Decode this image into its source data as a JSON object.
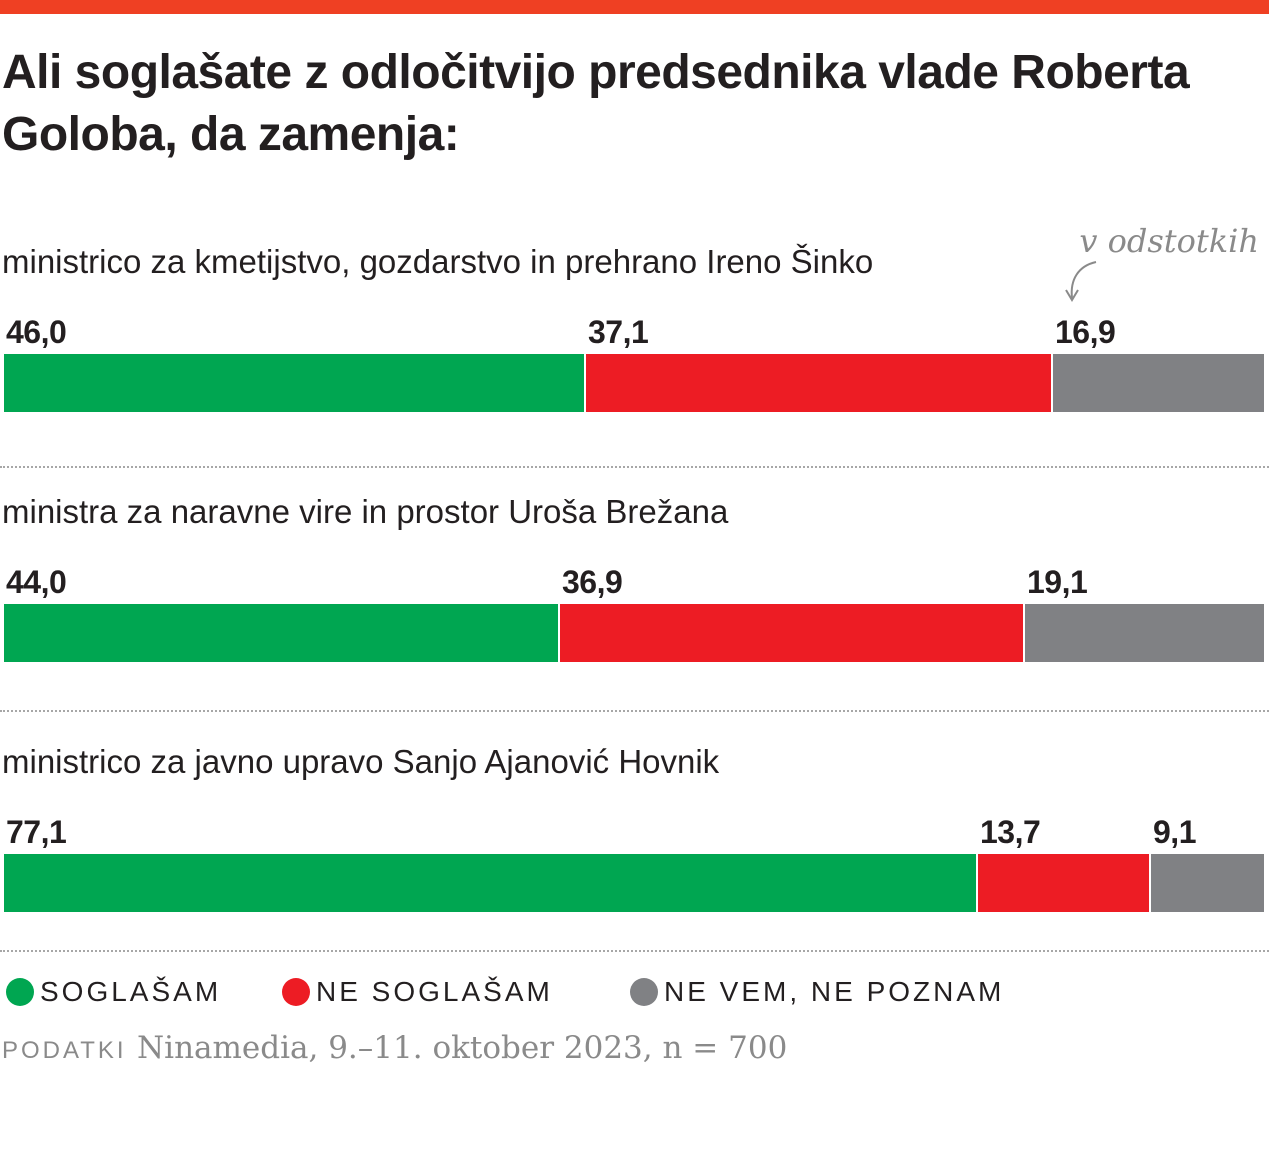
{
  "colors": {
    "accent": "#ef4023",
    "agree": "#00a651",
    "disagree": "#ed1c24",
    "unknown": "#808184",
    "text": "#231f20",
    "muted": "#8a8a8a"
  },
  "title": "Ali soglašate z odločitvijo predsednika vlade Roberta Goloba, da zamenja:",
  "unit_note": "v odstotkih",
  "chart_data": {
    "type": "bar",
    "orientation": "horizontal",
    "stacked": true,
    "title": "Ali soglašate z odločitvijo predsednika vlade Roberta Goloba, da zamenja:",
    "unit": "v odstotkih",
    "categories": [
      "ministrico za kmetijstvo, gozdarstvo in prehrano Ireno Šinko",
      "ministra za naravne vire in prostor Uroša Brežana",
      "ministrico za javno upravo Sanjo Ajanović Hovnik"
    ],
    "series": [
      {
        "name": "SOGLAŠAM",
        "color": "#00a651",
        "values": [
          46.0,
          44.0,
          77.1
        ],
        "labels": [
          "46,0",
          "44,0",
          "77,1"
        ]
      },
      {
        "name": "NE SOGLAŠAM",
        "color": "#ed1c24",
        "values": [
          37.1,
          36.9,
          13.7
        ],
        "labels": [
          "37,1",
          "36,9",
          "13,7"
        ]
      },
      {
        "name": "NE VEM, NE POZNAM",
        "color": "#808184",
        "values": [
          16.9,
          19.1,
          9.1
        ],
        "labels": [
          "16,9",
          "19,1",
          "9,1"
        ]
      }
    ],
    "xlim": [
      0,
      100
    ],
    "legend": "bottom-left"
  },
  "source": {
    "label": "PODATKI",
    "text": "Ninamedia, 9.–11. oktober 2023, n = 700"
  }
}
